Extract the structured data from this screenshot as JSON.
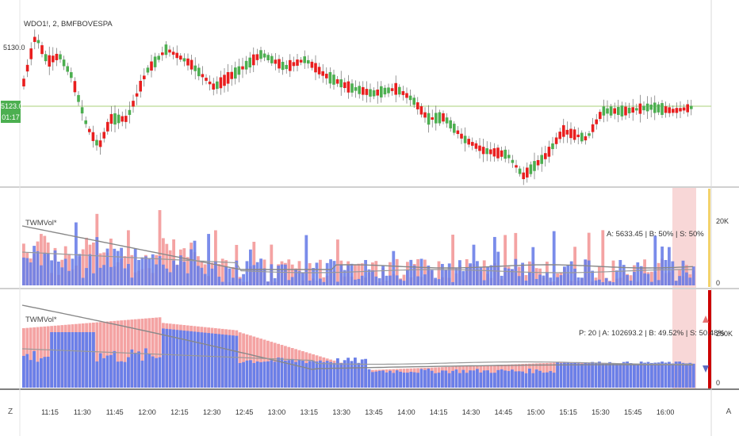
{
  "symbol": "WDO1!, 2, BMFBOVESPA",
  "price_scale": {
    "top_label": "5130.0",
    "current_price": "5123.0",
    "countdown": "01:17"
  },
  "pane1": {
    "title": "TWMVol*",
    "stats": "A: 5633.45 | B: 50% | S: 50%",
    "scale_top": "20K",
    "scale_zero": "0"
  },
  "pane2": {
    "title": "TWMVol*",
    "stats": "P: 20 | A: 102693.2 | B: 49.52% | S: 50.48%",
    "scale_top": "250K",
    "scale_zero": "0"
  },
  "time_axis": [
    "11:15",
    "11:30",
    "11:45",
    "12:00",
    "12:15",
    "12:30",
    "12:45",
    "13:00",
    "13:15",
    "13:30",
    "13:45",
    "14:00",
    "14:15",
    "14:30",
    "14:45",
    "15:00",
    "15:15",
    "15:30",
    "15:45",
    "16:00"
  ],
  "corner_buttons": {
    "left": "Z",
    "right": "A"
  },
  "colors": {
    "up": "#4caf50",
    "down": "#e91e1e",
    "buy_volume": "#6b7fe8",
    "sell_volume": "#f4a3a3",
    "price_line": "#c5e1a5",
    "alert_bar": "#cc0000",
    "highlight": "#f8d7d7"
  }
}
